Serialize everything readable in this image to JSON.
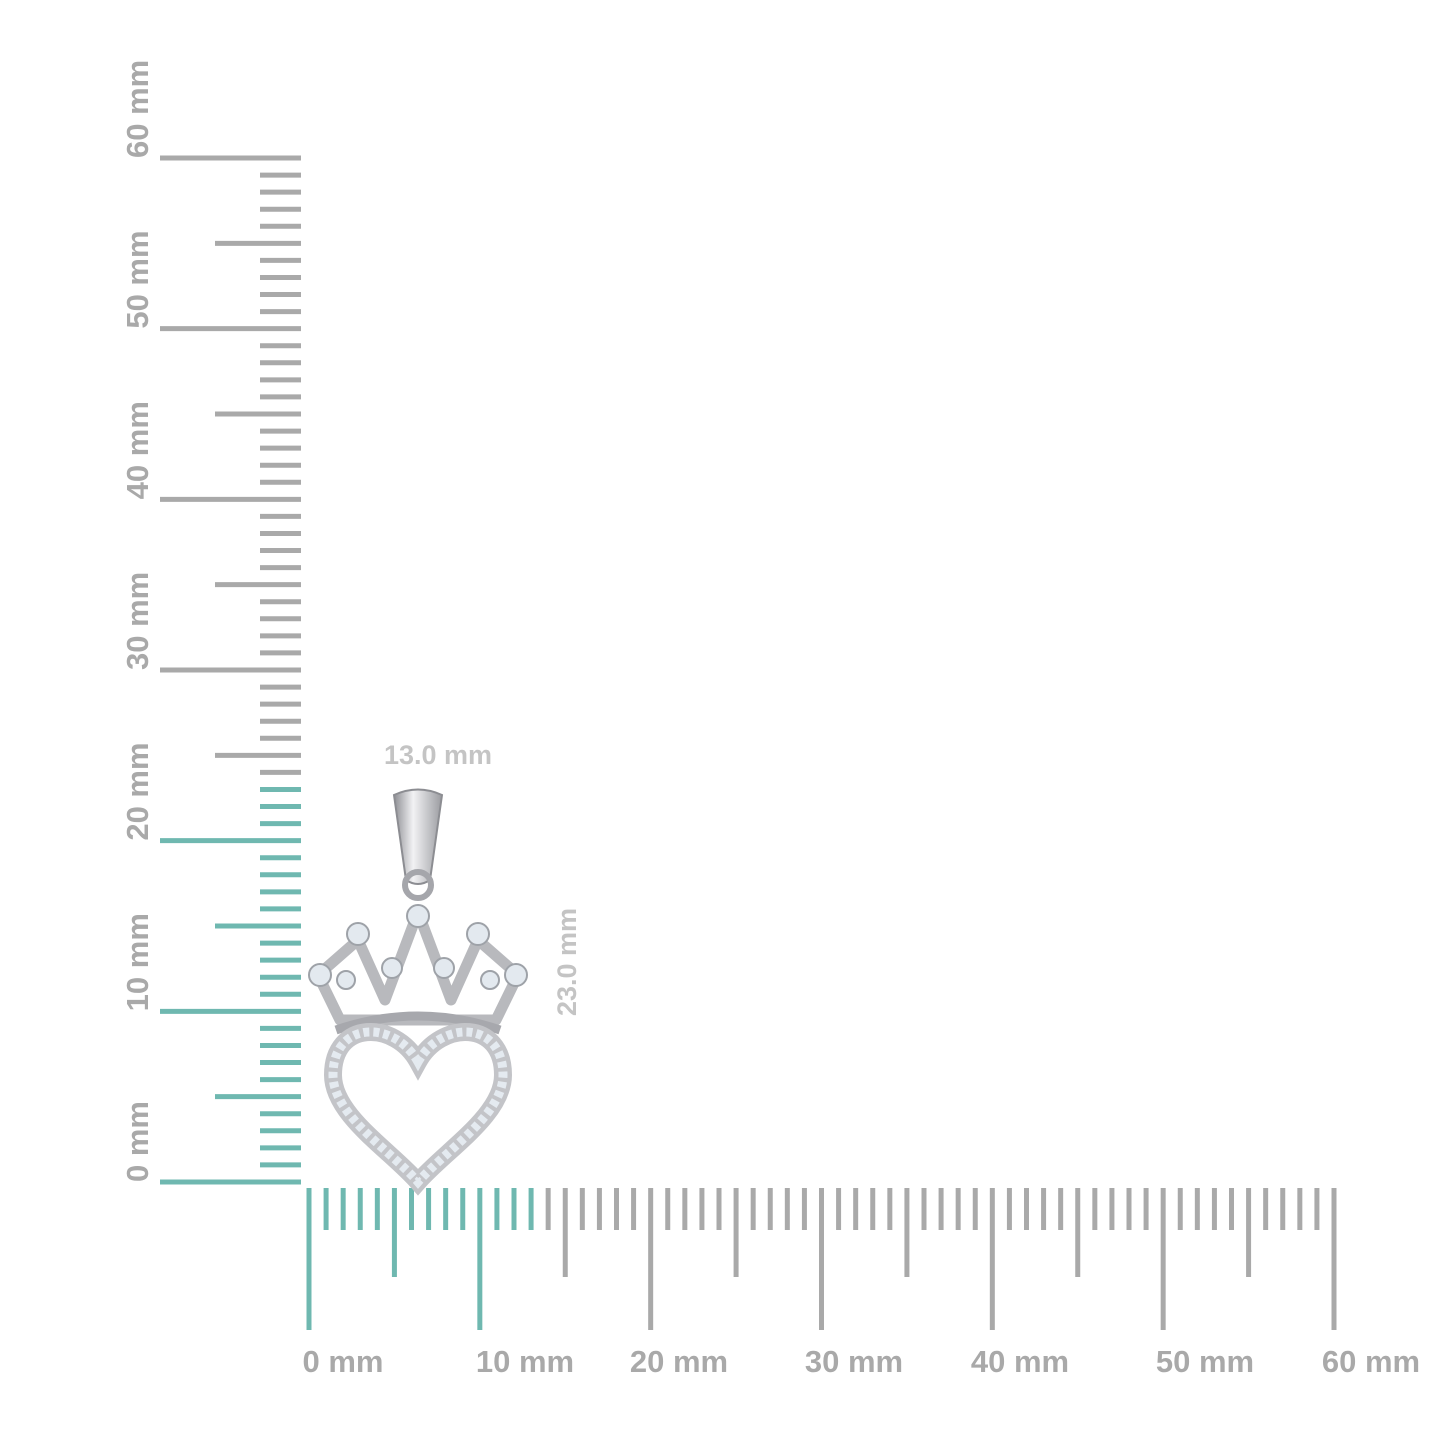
{
  "colors": {
    "highlight": "#6fb8b0",
    "ruler": "#a9a9a9",
    "metal": "#c9c9cc",
    "stone": "#dfe7ee"
  },
  "vertical_ruler": {
    "min_mm": 0,
    "max_mm": 60,
    "highlight_to_mm": 23,
    "labels": [
      "0 mm",
      "10 mm",
      "20 mm",
      "30 mm",
      "40 mm",
      "50 mm",
      "60 mm"
    ]
  },
  "horizontal_ruler": {
    "min_mm": 0,
    "max_mm": 60,
    "highlight_to_mm": 13,
    "labels": [
      "0 mm",
      "10 mm",
      "20 mm",
      "30 mm",
      "40 mm",
      "50 mm",
      "60 mm"
    ]
  },
  "dimensions": {
    "width_label": "13.0 mm",
    "height_label": "23.0 mm"
  },
  "product": {
    "icon": "crown-heart-pendant-icon"
  }
}
